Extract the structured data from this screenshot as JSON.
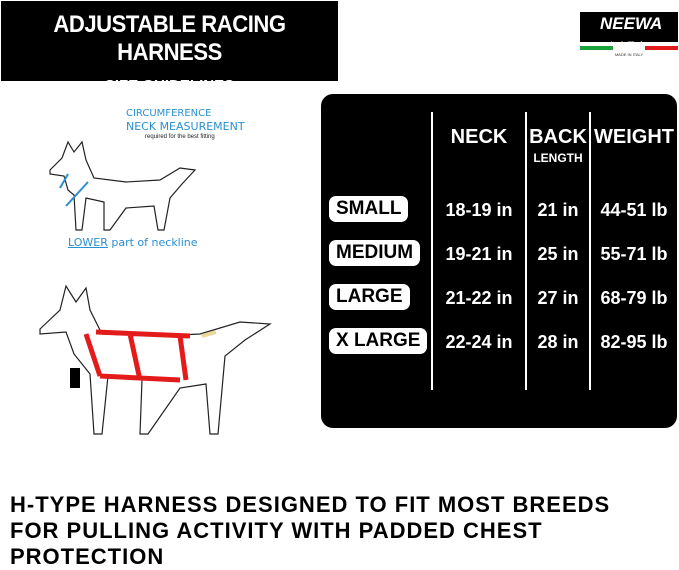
{
  "header": {
    "title": "ADJUSTABLE RACING HARNESS",
    "subtitle": "SIZE GUIDELINES"
  },
  "logo": {
    "brand": "NEEWA",
    "tagline": "sport and utility dog gear",
    "origin": "MADE IN ITALY",
    "flag_colors": [
      "#1aa33a",
      "#ffffff",
      "#e31b1b"
    ]
  },
  "measure": {
    "line1": "CIRCUMFERENCE",
    "line2": "NECK MEASUREMENT",
    "line3": "required for the best fitting",
    "lower_emph": "LOWER",
    "lower_rest": " part of neckline",
    "accent": "#2a8fd0"
  },
  "harness_color": "#e31b1b",
  "table": {
    "headers": {
      "neck": "NECK",
      "back": "BACK",
      "back_sub": "LENGTH",
      "weight": "WEIGHT"
    },
    "rows": [
      {
        "size": "SMALL",
        "neck": "18-19 in",
        "back": "21 in",
        "weight": "44-51 lb"
      },
      {
        "size": "MEDIUM",
        "neck": "19-21 in",
        "back": "25 in",
        "weight": "55-71 lb"
      },
      {
        "size": "LARGE",
        "neck": "21-22 in",
        "back": "27 in",
        "weight": "68-79 lb"
      },
      {
        "size": "X LARGE",
        "neck": "22-24 in",
        "back": "28 in",
        "weight": "82-95 lb"
      }
    ]
  },
  "footer": {
    "line1": "H-TYPE HARNESS DESIGNED TO FIT MOST BREEDS",
    "line2": "FOR PULLING ACTIVITY WITH PADDED CHEST PROTECTION"
  }
}
